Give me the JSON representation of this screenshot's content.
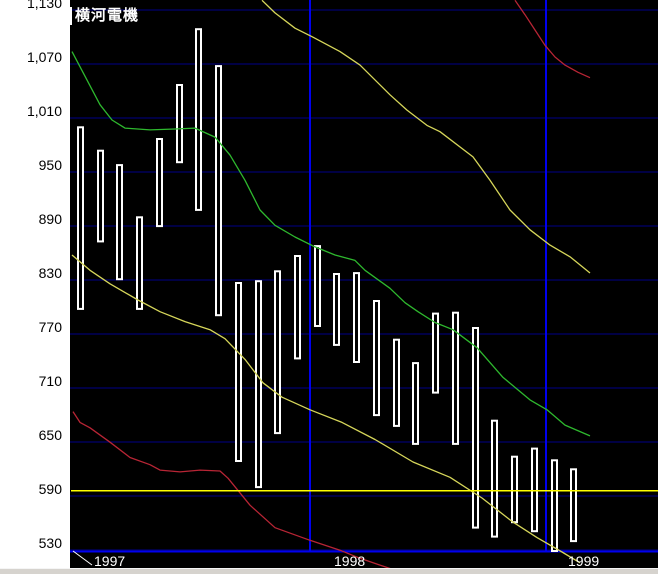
{
  "chart_data": {
    "type": "bar",
    "subtype": "stock-monthly-high-low-range",
    "title": "横河電機",
    "ylim": [
      519,
      1133
    ],
    "grid": true,
    "legend": "none",
    "y_axis": {
      "tick_labels": [
        "1,130",
        "1,070",
        "1,010",
        "950",
        "890",
        "830",
        "770",
        "710",
        "650",
        "590",
        "530"
      ],
      "tick_values": [
        1130,
        1070,
        1010,
        950,
        890,
        830,
        770,
        710,
        650,
        590,
        530
      ]
    },
    "x_axis": {
      "year_labels": [
        "1997",
        "1998",
        "1999"
      ]
    },
    "bars": [
      {
        "year": 1997,
        "month": 1,
        "high": 993,
        "low": 789
      },
      {
        "year": 1997,
        "month": 2,
        "high": 967,
        "low": 864
      },
      {
        "year": 1997,
        "month": 3,
        "high": 951,
        "low": 822
      },
      {
        "year": 1997,
        "month": 4,
        "high": 893,
        "low": 789
      },
      {
        "year": 1997,
        "month": 5,
        "high": 980,
        "low": 881
      },
      {
        "year": 1997,
        "month": 6,
        "high": 1040,
        "low": 952
      },
      {
        "year": 1997,
        "month": 7,
        "high": 1102,
        "low": 899
      },
      {
        "year": 1997,
        "month": 8,
        "high": 1061,
        "low": 782
      },
      {
        "year": 1997,
        "month": 9,
        "high": 820,
        "low": 620
      },
      {
        "year": 1997,
        "month": 10,
        "high": 822,
        "low": 591
      },
      {
        "year": 1997,
        "month": 11,
        "high": 833,
        "low": 651
      },
      {
        "year": 1997,
        "month": 12,
        "high": 850,
        "low": 734
      },
      {
        "year": 1998,
        "month": 1,
        "high": 861,
        "low": 770
      },
      {
        "year": 1998,
        "month": 2,
        "high": 830,
        "low": 749
      },
      {
        "year": 1998,
        "month": 3,
        "high": 831,
        "low": 730
      },
      {
        "year": 1998,
        "month": 4,
        "high": 800,
        "low": 671
      },
      {
        "year": 1998,
        "month": 5,
        "high": 757,
        "low": 659
      },
      {
        "year": 1998,
        "month": 6,
        "high": 731,
        "low": 639
      },
      {
        "year": 1998,
        "month": 7,
        "high": 786,
        "low": 696
      },
      {
        "year": 1998,
        "month": 8,
        "high": 787,
        "low": 639
      },
      {
        "year": 1998,
        "month": 9,
        "high": 770,
        "low": 546
      },
      {
        "year": 1998,
        "month": 10,
        "high": 667,
        "low": 536
      },
      {
        "year": 1998,
        "month": 11,
        "high": 627,
        "low": 552
      },
      {
        "year": 1998,
        "month": 12,
        "high": 636,
        "low": 542
      },
      {
        "year": 1999,
        "month": 1,
        "high": 623,
        "low": 520
      },
      {
        "year": 1999,
        "month": 2,
        "high": 613,
        "low": 531
      }
    ],
    "horizontal_line": {
      "value": 588,
      "color": "#ffff00"
    },
    "overlay_lines": [
      {
        "name": "green-ma-line",
        "color": "#2eb82e",
        "points": [
          [
            72,
            1076
          ],
          [
            100,
            1017
          ],
          [
            112,
            1000
          ],
          [
            125,
            991
          ],
          [
            150,
            989
          ],
          [
            175,
            990
          ],
          [
            195,
            991
          ],
          [
            215,
            981
          ],
          [
            230,
            961
          ],
          [
            245,
            933
          ],
          [
            260,
            900
          ],
          [
            275,
            883
          ],
          [
            295,
            870
          ],
          [
            315,
            859
          ],
          [
            335,
            850
          ],
          [
            355,
            844
          ],
          [
            365,
            833
          ],
          [
            390,
            813
          ],
          [
            405,
            797
          ],
          [
            418,
            787
          ],
          [
            435,
            775
          ],
          [
            453,
            767
          ],
          [
            477,
            747
          ],
          [
            503,
            714
          ],
          [
            530,
            689
          ],
          [
            547,
            678
          ],
          [
            565,
            661
          ],
          [
            590,
            649
          ]
        ]
      },
      {
        "name": "yellow-upper-ma-line",
        "color": "#d6d65a",
        "points": [
          [
            262,
            1133
          ],
          [
            275,
            1119
          ],
          [
            295,
            1102
          ],
          [
            313,
            1092
          ],
          [
            340,
            1076
          ],
          [
            360,
            1061
          ],
          [
            390,
            1028
          ],
          [
            407,
            1011
          ],
          [
            427,
            994
          ],
          [
            440,
            987
          ],
          [
            473,
            959
          ],
          [
            490,
            933
          ],
          [
            510,
            900
          ],
          [
            530,
            878
          ],
          [
            550,
            861
          ],
          [
            570,
            848
          ],
          [
            590,
            830
          ]
        ]
      },
      {
        "name": "yellow-lower-ma-line",
        "color": "#d6d65a",
        "points": [
          [
            72,
            850
          ],
          [
            90,
            833
          ],
          [
            110,
            818
          ],
          [
            138,
            800
          ],
          [
            160,
            787
          ],
          [
            185,
            776
          ],
          [
            210,
            767
          ],
          [
            225,
            757
          ],
          [
            245,
            734
          ],
          [
            263,
            708
          ],
          [
            282,
            692
          ],
          [
            310,
            678
          ],
          [
            342,
            664
          ],
          [
            375,
            645
          ],
          [
            413,
            620
          ],
          [
            450,
            603
          ],
          [
            482,
            580
          ],
          [
            512,
            554
          ],
          [
            537,
            536
          ],
          [
            562,
            520
          ],
          [
            580,
            508
          ]
        ]
      },
      {
        "name": "red-upper-band-line",
        "color": "#b82535",
        "points": [
          [
            515,
            1133
          ],
          [
            525,
            1117
          ],
          [
            535,
            1100
          ],
          [
            545,
            1083
          ],
          [
            555,
            1070
          ],
          [
            565,
            1061
          ],
          [
            578,
            1053
          ],
          [
            590,
            1047
          ]
        ]
      },
      {
        "name": "red-lower-band-line",
        "color": "#b82535",
        "points": [
          [
            73,
            676
          ],
          [
            80,
            664
          ],
          [
            90,
            658
          ],
          [
            110,
            642
          ],
          [
            130,
            625
          ],
          [
            150,
            617
          ],
          [
            160,
            611
          ],
          [
            180,
            609
          ],
          [
            200,
            611
          ],
          [
            220,
            610
          ],
          [
            228,
            602
          ],
          [
            250,
            572
          ],
          [
            275,
            547
          ],
          [
            310,
            533
          ],
          [
            340,
            522
          ],
          [
            360,
            513
          ],
          [
            397,
            499
          ]
        ]
      }
    ]
  },
  "colors": {
    "background": "#000000",
    "axis_strip": "#ffffff",
    "grid": "#00006e",
    "axis_line": "#0000ee",
    "bar_outline": "#ffffff",
    "bar_fill": "#000000",
    "tick_text": "#000000",
    "year_text": "#ffffff",
    "title_text": "#ffffff",
    "window_strip": "#d6d3ce"
  }
}
